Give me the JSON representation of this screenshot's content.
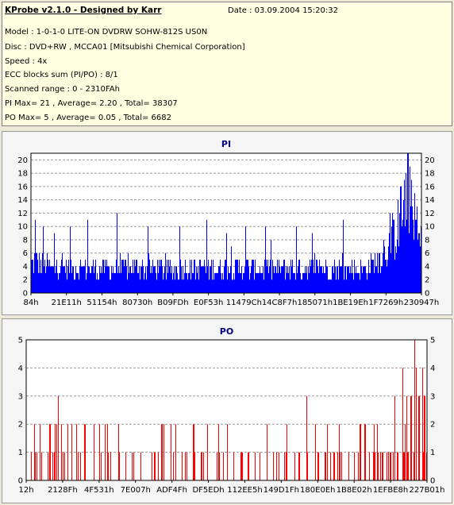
{
  "header": {
    "title": "KProbe v2.1.0 - Designed by Karr",
    "date": "Date : 03.09.2004 15:20:32",
    "lines": [
      "Model : 1-0-1-0 LITE-ON DVDRW SOHW-812S  US0N",
      "Disc : DVD+RW , MCCA01 [Mitsubishi Chemical Corporation]",
      "Speed : 4x",
      "ECC blocks sum (PI/PO) : 8/1",
      "Scanned range : 0 - 2310FAh",
      "PI Max= 21 , Average= 2.20 , Total= 38307",
      "PO Max= 5 , Average= 0.05 , Total= 6682"
    ]
  },
  "colors": {
    "pi": "#0000ff",
    "po": "#ff0000",
    "grid": "#9a9a9a",
    "plot_bg": "#ffffff"
  },
  "chart_data": [
    {
      "type": "bar",
      "title": "PI",
      "ylim": [
        0,
        21
      ],
      "yticks": [
        0,
        2,
        4,
        6,
        8,
        10,
        12,
        14,
        16,
        18,
        20
      ],
      "xticks": [
        "84h",
        "21E11h",
        "51154h",
        "80730h",
        "B09FDh",
        "E0F53h",
        "11479Ch",
        "14C8F7h",
        "185071h",
        "1BE19Eh",
        "1F7269h",
        "230947h"
      ],
      "grid": "horizontal dashed",
      "profile": [
        [
          0.0,
          4.8
        ],
        [
          0.05,
          3.8
        ],
        [
          0.1,
          3.8
        ],
        [
          0.2,
          3.6
        ],
        [
          0.3,
          3.7
        ],
        [
          0.4,
          3.6
        ],
        [
          0.5,
          3.7
        ],
        [
          0.6,
          3.6
        ],
        [
          0.7,
          3.7
        ],
        [
          0.8,
          3.6
        ],
        [
          0.86,
          3.5
        ],
        [
          0.88,
          4.5
        ],
        [
          0.9,
          6.0
        ],
        [
          0.93,
          8.5
        ],
        [
          0.95,
          12.0
        ],
        [
          0.965,
          15.5
        ],
        [
          0.98,
          11.0
        ],
        [
          1.0,
          7.0
        ]
      ],
      "spikes": [
        [
          0.01,
          11
        ],
        [
          0.03,
          10
        ],
        [
          0.06,
          9
        ],
        [
          0.1,
          10
        ],
        [
          0.145,
          11
        ],
        [
          0.22,
          12
        ],
        [
          0.3,
          10
        ],
        [
          0.38,
          10
        ],
        [
          0.45,
          11
        ],
        [
          0.5,
          9
        ],
        [
          0.55,
          10
        ],
        [
          0.6,
          10
        ],
        [
          0.68,
          10
        ],
        [
          0.72,
          9
        ],
        [
          0.8,
          11
        ],
        [
          0.92,
          12
        ],
        [
          0.94,
          14
        ],
        [
          0.95,
          16
        ],
        [
          0.965,
          21
        ],
        [
          0.975,
          17
        ],
        [
          0.99,
          13
        ]
      ]
    },
    {
      "type": "bar",
      "title": "PO",
      "ylim": [
        0,
        5
      ],
      "yticks": [
        0,
        1,
        2,
        3,
        4,
        5
      ],
      "xticks": [
        "12h",
        "2128Fh",
        "4F531h",
        "7E007h",
        "ADF4Fh",
        "DF5EDh",
        "112EE5h",
        "149D1Fh",
        "180E0Eh",
        "1B8E02h",
        "1EFBE8h",
        "227B01h"
      ],
      "grid": "horizontal dashed",
      "profile": [
        [
          0.0,
          0.45
        ],
        [
          0.2,
          0.45
        ],
        [
          0.4,
          0.45
        ],
        [
          0.6,
          0.45
        ],
        [
          0.8,
          0.45
        ],
        [
          0.86,
          0.5
        ],
        [
          0.88,
          0.6
        ],
        [
          0.9,
          0.75
        ],
        [
          0.93,
          0.85
        ],
        [
          0.96,
          0.8
        ],
        [
          1.0,
          0.75
        ]
      ],
      "spikes": [
        [
          0.08,
          3
        ],
        [
          0.7,
          3
        ],
        [
          0.92,
          3
        ],
        [
          0.94,
          4
        ],
        [
          0.95,
          3
        ],
        [
          0.96,
          3
        ],
        [
          0.97,
          5
        ],
        [
          0.975,
          4
        ],
        [
          0.99,
          4
        ]
      ]
    }
  ]
}
